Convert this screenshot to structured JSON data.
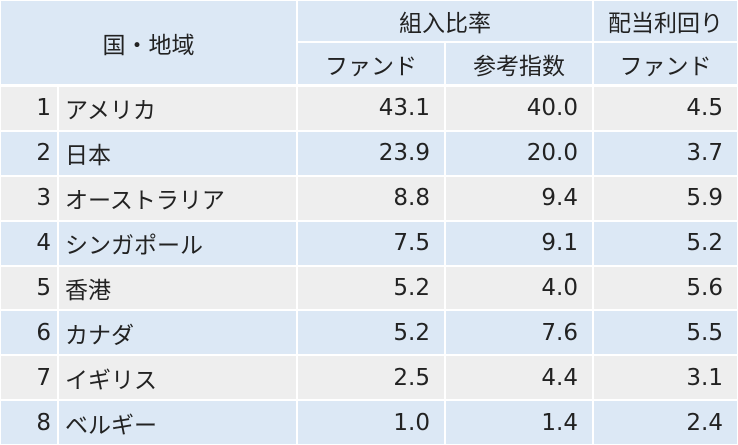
{
  "header": {
    "region": "国・地域",
    "allocation": "組入比率",
    "dividend": "配当利回り",
    "fund": "ファンド",
    "index": "参考指数",
    "dividend_fund": "ファンド"
  },
  "rows": [
    [
      "1",
      "アメリカ",
      "43.1",
      "40.0",
      "4.5"
    ],
    [
      "2",
      "日本",
      "23.9",
      "20.0",
      "3.7"
    ],
    [
      "3",
      "オーストラリア",
      "8.8",
      "9.4",
      "5.9"
    ],
    [
      "4",
      "シンガポール",
      "7.5",
      "9.1",
      "5.2"
    ],
    [
      "5",
      "香港",
      "5.2",
      "4.0",
      "5.6"
    ],
    [
      "6",
      "カナダ",
      "5.2",
      "7.6",
      "5.5"
    ],
    [
      "7",
      "イギリス",
      "2.5",
      "4.4",
      "3.1"
    ],
    [
      "8",
      "ベルギー",
      "1.0",
      "1.4",
      "2.4"
    ]
  ]
}
